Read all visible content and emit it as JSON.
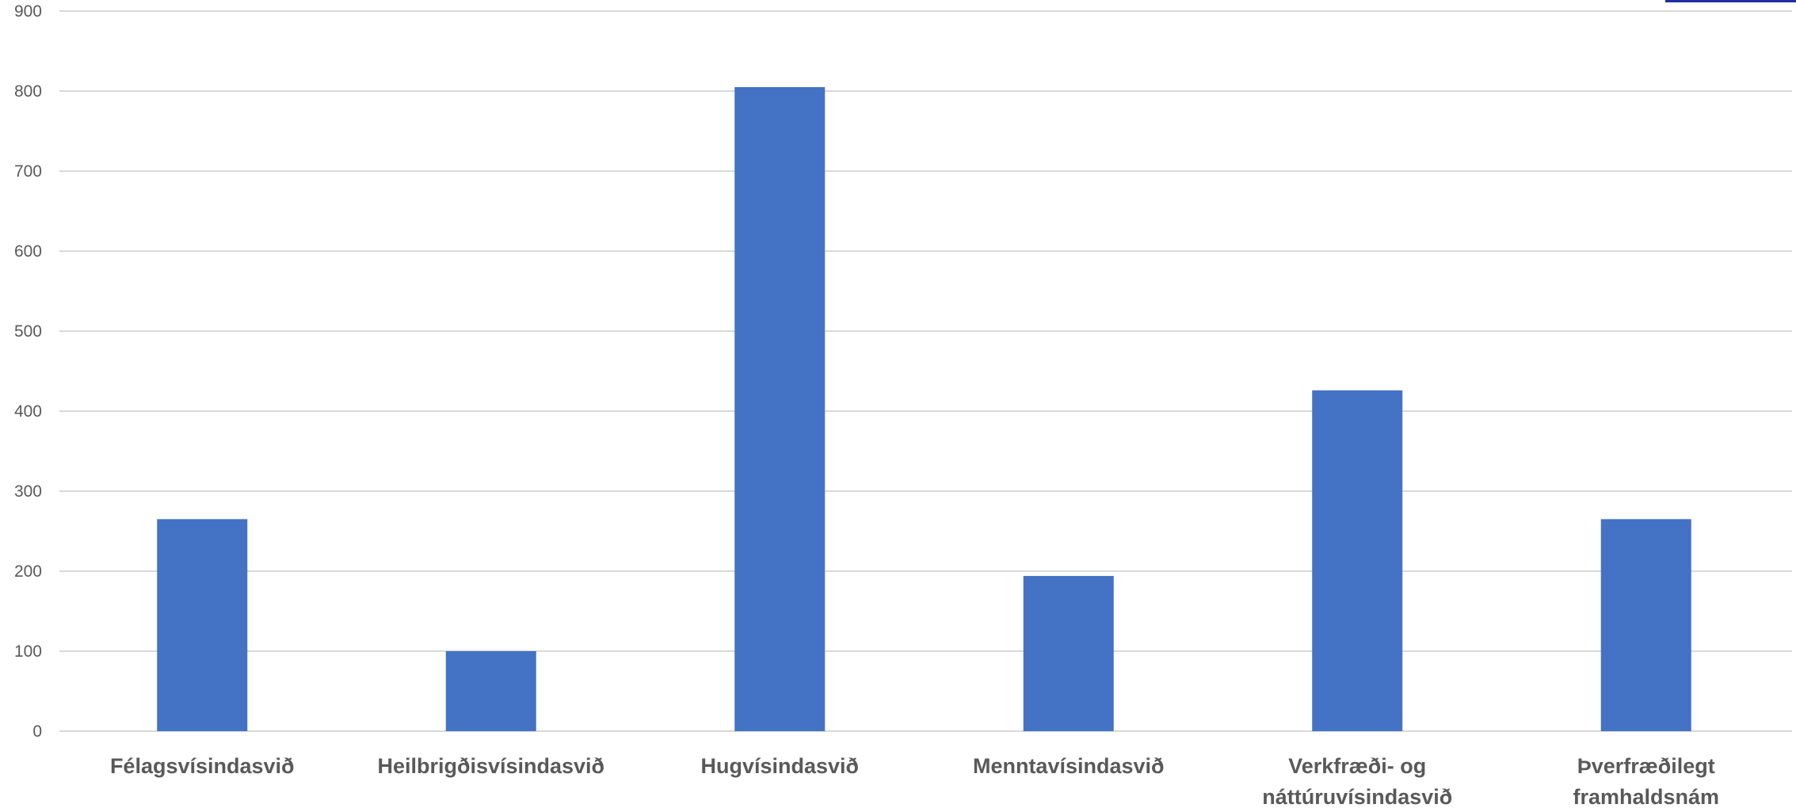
{
  "chart_data": {
    "type": "bar",
    "categories": [
      [
        "Félagsvísindasvið"
      ],
      [
        "Heilbrigðisvísindasvið"
      ],
      [
        "Hugvísindasvið"
      ],
      [
        "Menntavísindasvið"
      ],
      [
        "Verkfræði- og",
        "náttúruvísindasvið"
      ],
      [
        "Þverfræðilegt",
        "framhaldsnám"
      ]
    ],
    "values": [
      265,
      100,
      805,
      194,
      426,
      265
    ],
    "title": "",
    "xlabel": "",
    "ylabel": "",
    "ylim": [
      0,
      900
    ],
    "yticks": [
      0,
      100,
      200,
      300,
      400,
      500,
      600,
      700,
      800,
      900
    ],
    "grid": true,
    "legend": "none",
    "bar_color": "#4472c4",
    "grid_color": "#d9d9d9",
    "label_color": "#595959"
  }
}
